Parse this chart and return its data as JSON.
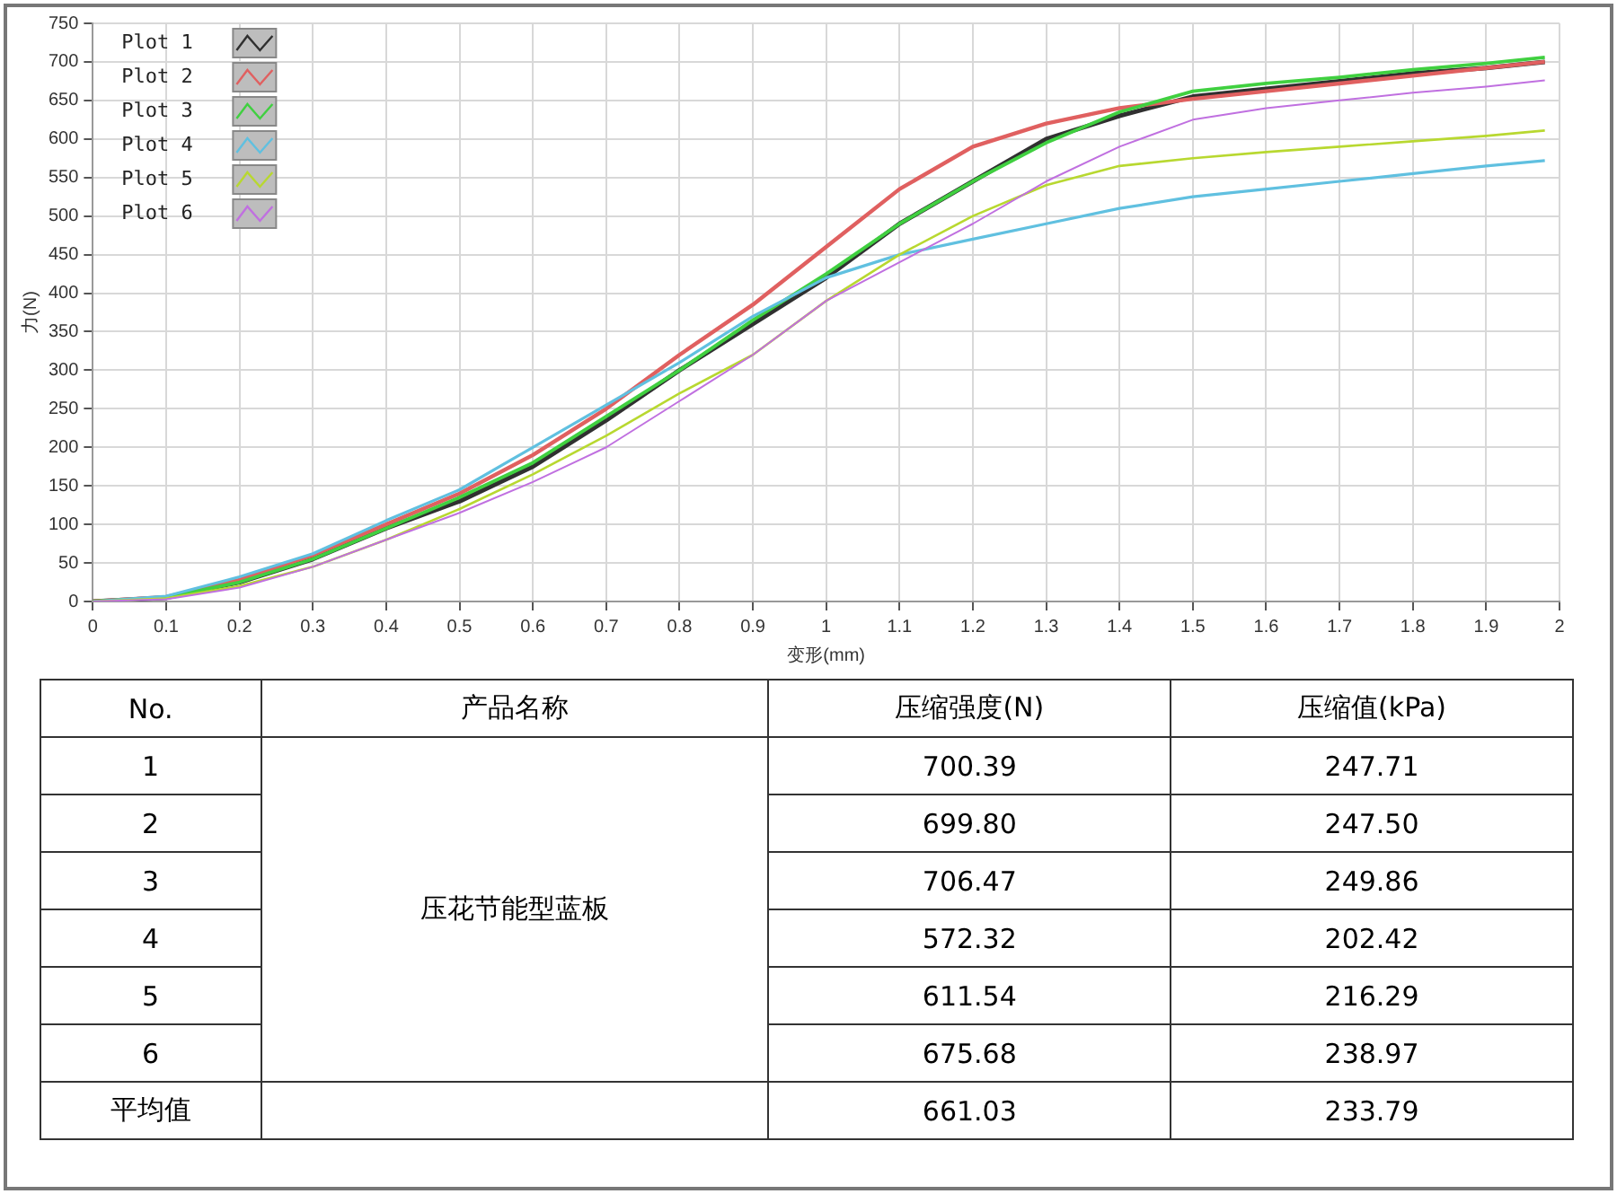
{
  "chart_data": {
    "type": "line",
    "xlabel": "变形(mm)",
    "ylabel": "力(N)",
    "x": [
      0,
      0.1,
      0.2,
      0.3,
      0.4,
      0.5,
      0.6,
      0.7,
      0.8,
      0.9,
      1,
      1.1,
      1.2,
      1.3,
      1.4,
      1.5,
      1.6,
      1.7,
      1.8,
      1.9,
      1.98
    ],
    "series": [
      {
        "name": "Plot 1",
        "color": "#303030",
        "values": [
          0,
          5,
          25,
          55,
          95,
          130,
          175,
          235,
          300,
          360,
          420,
          490,
          545,
          600,
          630,
          655,
          665,
          675,
          685,
          692,
          700
        ]
      },
      {
        "name": "Plot 2",
        "color": "#e06060",
        "values": [
          0,
          6,
          28,
          60,
          100,
          140,
          190,
          250,
          320,
          385,
          460,
          535,
          590,
          620,
          640,
          652,
          662,
          672,
          682,
          692,
          700
        ]
      },
      {
        "name": "Plot 3",
        "color": "#40d040",
        "values": [
          0,
          5,
          25,
          55,
          95,
          135,
          180,
          240,
          300,
          365,
          425,
          490,
          545,
          595,
          635,
          662,
          672,
          680,
          690,
          698,
          706
        ]
      },
      {
        "name": "Plot 4",
        "color": "#60c0e0",
        "values": [
          0,
          7,
          32,
          62,
          105,
          145,
          200,
          255,
          310,
          370,
          420,
          450,
          470,
          490,
          510,
          525,
          535,
          545,
          555,
          565,
          572
        ]
      },
      {
        "name": "Plot 5",
        "color": "#b8d830",
        "values": [
          0,
          4,
          20,
          45,
          80,
          120,
          165,
          215,
          270,
          320,
          390,
          450,
          500,
          540,
          565,
          575,
          583,
          590,
          597,
          604,
          611
        ]
      },
      {
        "name": "Plot 6",
        "color": "#c070e0",
        "values": [
          0,
          3,
          18,
          45,
          80,
          115,
          155,
          200,
          260,
          320,
          390,
          440,
          490,
          545,
          590,
          625,
          640,
          650,
          660,
          668,
          676
        ]
      }
    ],
    "xlim": [
      0,
      2
    ],
    "xticks": [
      0,
      0.1,
      0.2,
      0.3,
      0.4,
      0.5,
      0.6,
      0.7,
      0.8,
      0.9,
      1,
      1.1,
      1.2,
      1.3,
      1.4,
      1.5,
      1.6,
      1.7,
      1.8,
      1.9,
      2
    ],
    "ylim": [
      0,
      750
    ],
    "yticks": [
      0,
      50,
      100,
      150,
      200,
      250,
      300,
      350,
      400,
      450,
      500,
      550,
      600,
      650,
      700,
      750
    ],
    "grid": true,
    "legend": "top left",
    "marker": "none",
    "line_style": "solid",
    "annotations": [
      "No.",
      "产品名称",
      "压缩强度(N)",
      "压缩值(kPa)",
      "1",
      "压花节能型蓝板",
      "700.39",
      "247.71",
      "2",
      "699.80",
      "247.50",
      "3",
      "706.47",
      "249.86",
      "4",
      "572.32",
      "202.42",
      "5",
      "611.54",
      "216.29",
      "6",
      "675.68",
      "238.97",
      "平均值",
      "661.03",
      "233.79"
    ]
  }
}
